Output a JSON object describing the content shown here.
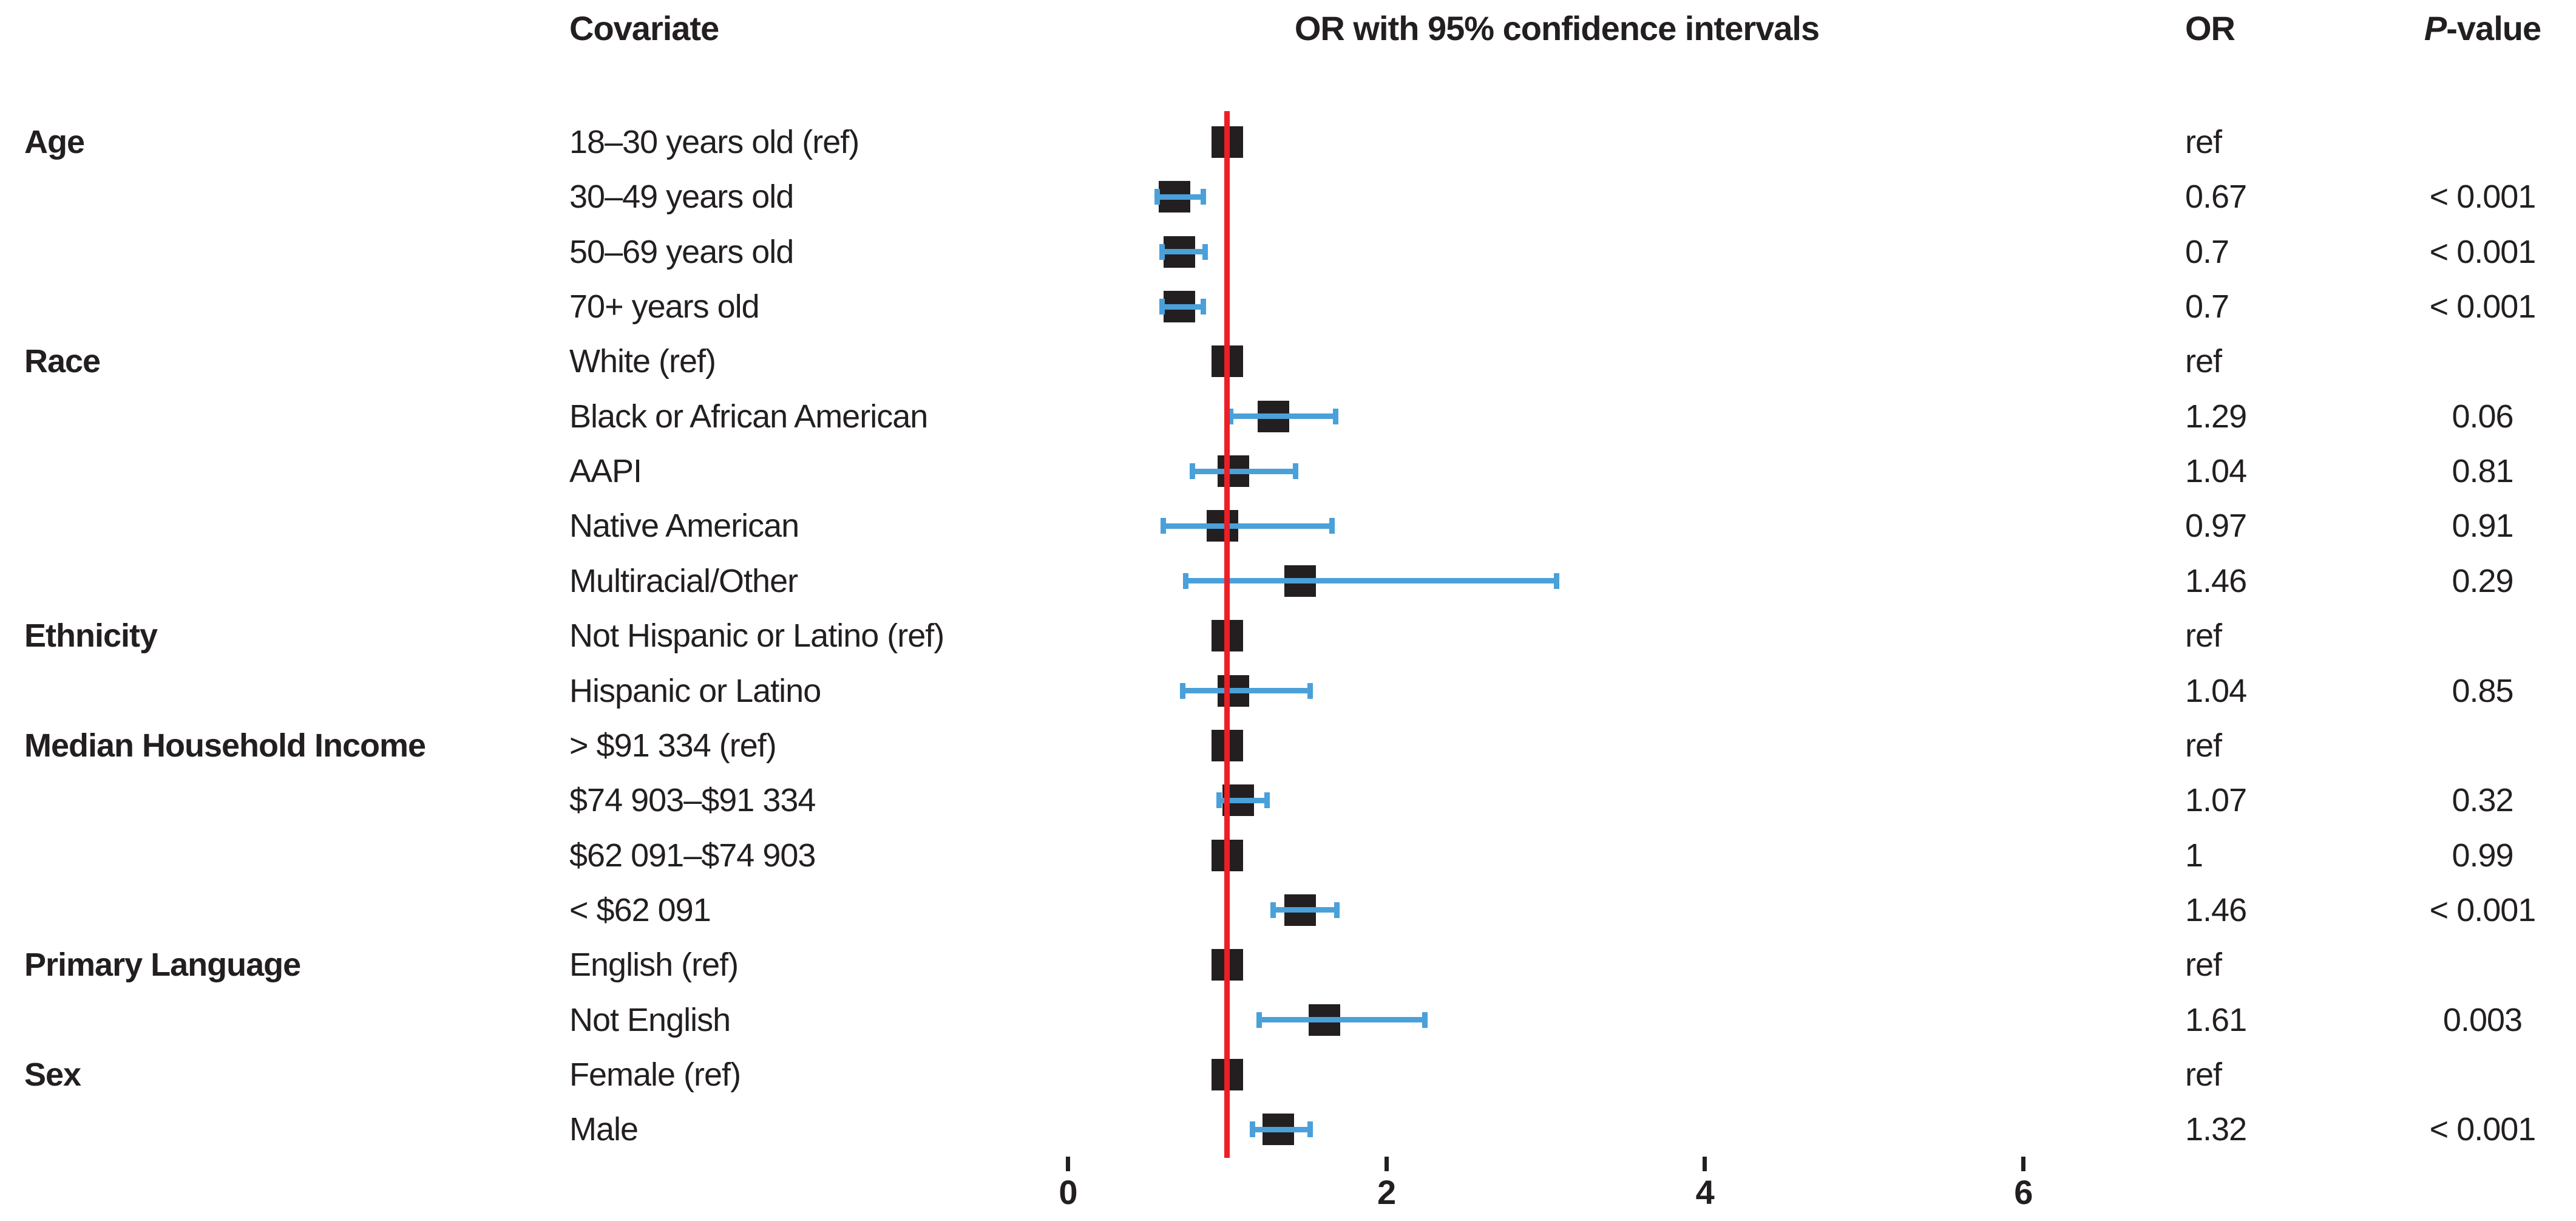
{
  "headers": {
    "covariate": "Covariate",
    "plot": "OR with 95% confidence intervals",
    "or": "OR",
    "p_italic": "P",
    "p_rest": "-value"
  },
  "colors": {
    "marker": "#231f20",
    "ci": "#4aa0d9",
    "ref_line": "#ec1e26",
    "text": "#231f20"
  },
  "chart_data": {
    "type": "forest",
    "title": "OR with 95% confidence intervals",
    "xlabel": "",
    "ylabel": "",
    "xlim": [
      -0.6,
      7.4
    ],
    "x_ticks": [
      0,
      2,
      4,
      6
    ],
    "x_tick_labels": [
      "0",
      "2",
      "4",
      "6"
    ],
    "ref_line_or": 1,
    "grid": false,
    "legend": false,
    "marker_shape": "square",
    "groups": [
      "Age",
      "Race",
      "Ethnicity",
      "Median Household Income",
      "Primary Language",
      "Sex"
    ],
    "rows": [
      {
        "group": "Age",
        "label": "18–30 years old (ref)",
        "or": 1,
        "or_text": "ref",
        "ci_low": null,
        "ci_high": null,
        "p": ""
      },
      {
        "group": null,
        "label": "30–49 years old",
        "or": 0.67,
        "or_text": "0.67",
        "ci_low": 0.56,
        "ci_high": 0.85,
        "p": "< 0.001"
      },
      {
        "group": null,
        "label": "50–69 years old",
        "or": 0.7,
        "or_text": "0.7",
        "ci_low": 0.59,
        "ci_high": 0.86,
        "p": "< 0.001"
      },
      {
        "group": null,
        "label": "70+ years old",
        "or": 0.7,
        "or_text": "0.7",
        "ci_low": 0.59,
        "ci_high": 0.85,
        "p": "< 0.001"
      },
      {
        "group": "Race",
        "label": "White (ref)",
        "or": 1,
        "or_text": "ref",
        "ci_low": null,
        "ci_high": null,
        "p": ""
      },
      {
        "group": null,
        "label": "Black or African American",
        "or": 1.29,
        "or_text": "1.29",
        "ci_low": 1.02,
        "ci_high": 1.68,
        "p": "0.06"
      },
      {
        "group": null,
        "label": "AAPI",
        "or": 1.04,
        "or_text": "1.04",
        "ci_low": 0.78,
        "ci_high": 1.43,
        "p": "0.81"
      },
      {
        "group": null,
        "label": "Native American",
        "or": 0.97,
        "or_text": "0.97",
        "ci_low": 0.6,
        "ci_high": 1.66,
        "p": "0.91"
      },
      {
        "group": null,
        "label": "Multiracial/Other",
        "or": 1.46,
        "or_text": "1.46",
        "ci_low": 0.74,
        "ci_high": 3.07,
        "p": "0.29"
      },
      {
        "group": "Ethnicity",
        "label": "Not Hispanic or Latino (ref)",
        "or": 1,
        "or_text": "ref",
        "ci_low": null,
        "ci_high": null,
        "p": ""
      },
      {
        "group": null,
        "label": "Hispanic or Latino",
        "or": 1.04,
        "or_text": "1.04",
        "ci_low": 0.72,
        "ci_high": 1.52,
        "p": "0.85"
      },
      {
        "group": "Median Household Income",
        "label": "> $91 334 (ref)",
        "or": 1,
        "or_text": "ref",
        "ci_low": null,
        "ci_high": null,
        "p": ""
      },
      {
        "group": null,
        "label": "$74 903–$91 334",
        "or": 1.07,
        "or_text": "1.07",
        "ci_low": 0.95,
        "ci_high": 1.25,
        "p": "0.32"
      },
      {
        "group": null,
        "label": "$62 091–$74 903",
        "or": 1,
        "or_text": "1",
        "ci_low": null,
        "ci_high": null,
        "p": "0.99"
      },
      {
        "group": null,
        "label": "< $62 091",
        "or": 1.46,
        "or_text": "1.46",
        "ci_low": 1.29,
        "ci_high": 1.69,
        "p": "< 0.001"
      },
      {
        "group": "Primary Language",
        "label": "English (ref)",
        "or": 1,
        "or_text": "ref",
        "ci_low": null,
        "ci_high": null,
        "p": ""
      },
      {
        "group": null,
        "label": "Not English",
        "or": 1.61,
        "or_text": "1.61",
        "ci_low": 1.2,
        "ci_high": 2.24,
        "p": "0.003"
      },
      {
        "group": "Sex",
        "label": "Female (ref)",
        "or": 1,
        "or_text": "ref",
        "ci_low": null,
        "ci_high": null,
        "p": ""
      },
      {
        "group": null,
        "label": "Male",
        "or": 1.32,
        "or_text": "1.32",
        "ci_low": 1.16,
        "ci_high": 1.52,
        "p": "< 0.001"
      }
    ]
  }
}
